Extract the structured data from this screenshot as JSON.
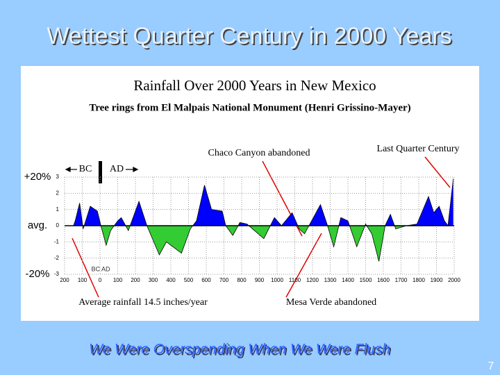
{
  "slide_title": "Wettest Quarter Century in 2000 Years",
  "chart_data": {
    "type": "area",
    "title": "Rainfall Over 2000 Years in New Mexico",
    "subtitle": "Tree rings from El Malpais National Monument (Henri Grissino-Mayer)",
    "annotations": [
      "Chaco Canyon abandoned",
      "Last Quarter Century",
      "Average rainfall 14.5 inches/year",
      "Mesa Verde abandoned",
      "BC",
      "AD",
      "BC AD"
    ],
    "y_side_labels": [
      "+20%",
      "avg.",
      "-20%"
    ],
    "x": [
      -150,
      -140,
      -115,
      -95,
      -55,
      -15,
      5,
      35,
      60,
      100,
      120,
      160,
      220,
      265,
      335,
      375,
      460,
      510,
      545,
      590,
      630,
      690,
      710,
      750,
      790,
      830,
      925,
      985,
      1025,
      1085,
      1125,
      1155,
      1245,
      1285,
      1320,
      1360,
      1400,
      1450,
      1500,
      1535,
      1575,
      1610,
      1640,
      1670,
      1730,
      1790,
      1855,
      1885,
      1915,
      1945,
      1965,
      1995
    ],
    "values": [
      0,
      0.3,
      1.4,
      -0.2,
      1.2,
      0.9,
      0,
      -1.2,
      -0.3,
      0.3,
      0.5,
      -0.3,
      1.5,
      0,
      -1.8,
      -1.0,
      -1.7,
      -0.2,
      0.3,
      2.5,
      1.0,
      0.9,
      0,
      -0.6,
      0.2,
      0.1,
      -0.8,
      0.5,
      0,
      0.8,
      -0.2,
      -0.5,
      1.3,
      0,
      -1.3,
      0.5,
      0.3,
      -1.3,
      0.1,
      -0.5,
      -2.2,
      0,
      0.7,
      -0.2,
      0,
      0.1,
      1.8,
      0.8,
      1.2,
      0.3,
      0,
      2.9
    ],
    "above_color": "#0000ff",
    "below_color": "#33cc33",
    "xlim": [
      -200,
      2000
    ],
    "xticks": [
      {
        "value": -200,
        "label": "200"
      },
      {
        "value": -100,
        "label": "100"
      },
      0,
      100,
      200,
      300,
      400,
      500,
      600,
      700,
      800,
      900,
      1000,
      1100,
      1200,
      1300,
      1400,
      1500,
      1600,
      1700,
      1800,
      1900,
      2000
    ],
    "ylim": [
      -3,
      3
    ],
    "yticks": [
      3,
      2,
      1,
      0,
      -1,
      -2,
      -3
    ],
    "grid": true
  },
  "caption": "We Were Overspending When We Were Flush",
  "page_number": "7"
}
